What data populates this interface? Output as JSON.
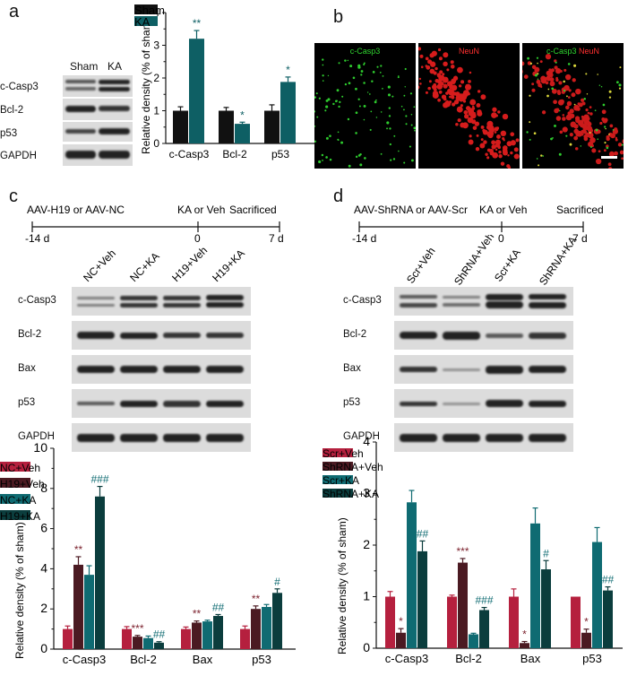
{
  "panels": {
    "a": "a",
    "b": "b",
    "c": "c",
    "d": "d"
  },
  "panel_a": {
    "blot_groups": [
      "Sham",
      "KA"
    ],
    "blot_rows": [
      "c-Casp3",
      "Bcl-2",
      "p53",
      "GAPDH"
    ]
  },
  "panel_b": {
    "images": [
      "c-Casp3",
      "NeuN",
      "c-Casp3"
    ],
    "merge_second": "NeuN"
  },
  "panel_c": {
    "timeline": {
      "left": "AAV-H19 or AAV-NC",
      "mid": "KA or Veh",
      "right": "Sacrificed",
      "t0": "-14 d",
      "t1": "0",
      "t2": "7 d"
    },
    "blot_groups": [
      "NC+Veh",
      "NC+KA",
      "H19+Veh",
      "H19+KA"
    ],
    "blot_rows": [
      "c-Casp3",
      "Bcl-2",
      "Bax",
      "p53",
      "GAPDH"
    ]
  },
  "panel_d": {
    "timeline": {
      "left": "AAV-ShRNA or AAV-Scr",
      "mid": "KA or Veh",
      "right": "Sacrificed",
      "t0": "-14 d",
      "t1": "0",
      "t2": "7 d"
    },
    "blot_groups": [
      "Scr+Veh",
      "ShRNA+Veh",
      "Scr+KA",
      "ShRNA+KA"
    ],
    "blot_rows": [
      "c-Casp3",
      "Bcl-2",
      "Bax",
      "p53",
      "GAPDH"
    ]
  },
  "colors": {
    "black": "#111111",
    "teal": "#0e5f64",
    "crimson": "#b5203e",
    "maroon": "#4b1a22",
    "tealmid": "#0f6b72",
    "darkteal": "#0b3d3d",
    "sig_maroon": "#7a1f2b",
    "sig_teal": "#0f6b72"
  },
  "chart_data": [
    {
      "type": "bar",
      "id": "a",
      "categories": [
        "c-Casp3",
        "Bcl-2",
        "p53"
      ],
      "series": [
        {
          "name": "Sham",
          "values": [
            1.0,
            1.0,
            1.0
          ],
          "errors": [
            0.12,
            0.1,
            0.18
          ]
        },
        {
          "name": "KA",
          "values": [
            3.2,
            0.6,
            1.88
          ],
          "errors": [
            0.25,
            0.05,
            0.15
          ]
        }
      ],
      "significance": [
        [
          "",
          "**"
        ],
        [
          "",
          "*"
        ],
        [
          "",
          "*"
        ]
      ],
      "ylabel": "Relative density (% of sham)",
      "ylim": [
        0,
        4
      ],
      "yticks": [
        "0",
        "1",
        "2",
        "3",
        "4"
      ],
      "legend": "top"
    },
    {
      "type": "bar",
      "id": "c",
      "categories": [
        "c-Casp3",
        "Bcl-2",
        "Bax",
        "p53"
      ],
      "series": [
        {
          "name": "NC+Veh",
          "values": [
            1.0,
            1.0,
            1.0,
            1.0
          ],
          "errors": [
            0.15,
            0.12,
            0.1,
            0.15
          ]
        },
        {
          "name": "H19+Veh",
          "values": [
            4.2,
            0.62,
            1.32,
            2.0
          ],
          "errors": [
            0.4,
            0.06,
            0.08,
            0.15
          ]
        },
        {
          "name": "NC+KA",
          "values": [
            3.7,
            0.55,
            1.38,
            2.1
          ],
          "errors": [
            0.45,
            0.1,
            0.06,
            0.12
          ]
        },
        {
          "name": "H19+KA",
          "values": [
            7.6,
            0.32,
            1.65,
            2.8
          ],
          "errors": [
            0.5,
            0.05,
            0.07,
            0.2
          ]
        }
      ],
      "significance": [
        [
          "",
          "**",
          "",
          "###"
        ],
        [
          "",
          "***",
          "",
          "##"
        ],
        [
          "",
          "**",
          "",
          "##"
        ],
        [
          "",
          "**",
          "",
          "#"
        ]
      ],
      "ylabel": "Relative density (% of sham)",
      "ylim": [
        0,
        10
      ],
      "yticks": [
        "0",
        "2",
        "4",
        "6",
        "8",
        "10"
      ],
      "legend": "top-right"
    },
    {
      "type": "bar",
      "id": "d",
      "categories": [
        "c-Casp3",
        "Bcl-2",
        "Bax",
        "p53"
      ],
      "series": [
        {
          "name": "Scr+Veh",
          "values": [
            1.0,
            1.0,
            1.0,
            1.0
          ],
          "errors": [
            0.1,
            0.03,
            0.15,
            0.0
          ]
        },
        {
          "name": "ShRNA+Veh",
          "values": [
            0.3,
            1.66,
            0.1,
            0.3
          ],
          "errors": [
            0.08,
            0.08,
            0.03,
            0.07
          ]
        },
        {
          "name": "Scr+KA",
          "values": [
            2.83,
            0.27,
            2.42,
            2.06
          ],
          "errors": [
            0.23,
            0.02,
            0.3,
            0.28
          ]
        },
        {
          "name": "ShRNA+KA",
          "values": [
            1.88,
            0.74,
            1.53,
            1.12
          ],
          "errors": [
            0.2,
            0.05,
            0.17,
            0.07
          ]
        }
      ],
      "significance": [
        [
          "",
          "*",
          "",
          "##"
        ],
        [
          "",
          "***",
          "",
          "###"
        ],
        [
          "",
          "*",
          "",
          "#"
        ],
        [
          "",
          "*",
          "",
          "##"
        ]
      ],
      "ylabel": "Relative density (% of sham)",
      "ylim": [
        0,
        4
      ],
      "yticks": [
        "0",
        "1",
        "2",
        "3",
        "4"
      ],
      "legend": "top-right"
    }
  ]
}
